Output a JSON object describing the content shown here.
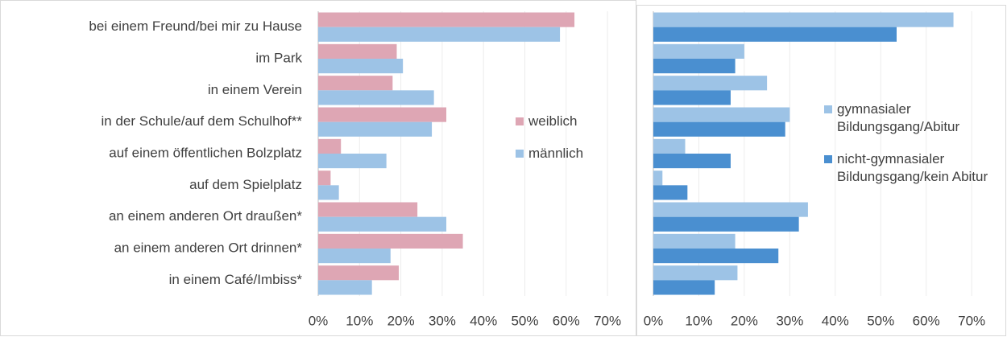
{
  "chart_data": [
    {
      "type": "bar",
      "orientation": "horizontal",
      "categories": [
        "bei einem Freund/bei mir zu Hause",
        "im Park",
        "in einem Verein",
        "in der Schule/auf dem Schulhof**",
        "auf einem öffentlichen Bolzplatz",
        "auf dem Spielplatz",
        "an einem anderen Ort draußen*",
        "an einem anderen Ort drinnen*",
        "in einem Café/Imbiss*"
      ],
      "series": [
        {
          "name": "weiblich",
          "color": "#dea6b4",
          "values": [
            62,
            19,
            18,
            31,
            5.5,
            3,
            24,
            35,
            19.5
          ]
        },
        {
          "name": "männlich",
          "color": "#9dc3e6",
          "values": [
            58.5,
            20.5,
            28,
            27.5,
            16.5,
            5,
            31,
            17.5,
            13
          ]
        }
      ],
      "xlim": [
        0,
        77
      ],
      "xticks": [
        {
          "value": 0,
          "label": "0%"
        },
        {
          "value": 10,
          "label": "10%"
        },
        {
          "value": 20,
          "label": "20%"
        },
        {
          "value": 30,
          "label": "30%"
        },
        {
          "value": 40,
          "label": "40%"
        },
        {
          "value": 50,
          "label": "50%"
        },
        {
          "value": 60,
          "label": "60%"
        },
        {
          "value": 70,
          "label": "70%"
        }
      ],
      "grid": true
    },
    {
      "type": "bar",
      "orientation": "horizontal",
      "series": [
        {
          "name": "gymnasialer Bildungsgang/Abitur",
          "color": "#9dc3e6",
          "values": [
            66,
            20,
            25,
            30,
            7,
            2,
            34,
            18,
            18.5
          ]
        },
        {
          "name": "nicht-gymnasialer Bildungsgang/kein Abitur",
          "color": "#4a8fd0",
          "values": [
            53.5,
            18,
            17,
            29,
            17,
            7.5,
            32,
            27.5,
            13.5
          ]
        }
      ],
      "xlim": [
        0,
        76
      ],
      "xticks": [
        {
          "value": 0,
          "label": "0%"
        },
        {
          "value": 10,
          "label": "10%"
        },
        {
          "value": 20,
          "label": "20%"
        },
        {
          "value": 30,
          "label": "30%"
        },
        {
          "value": 40,
          "label": "40%"
        },
        {
          "value": 50,
          "label": "50%"
        },
        {
          "value": 60,
          "label": "60%"
        },
        {
          "value": 70,
          "label": "70%"
        }
      ],
      "grid": true
    }
  ]
}
